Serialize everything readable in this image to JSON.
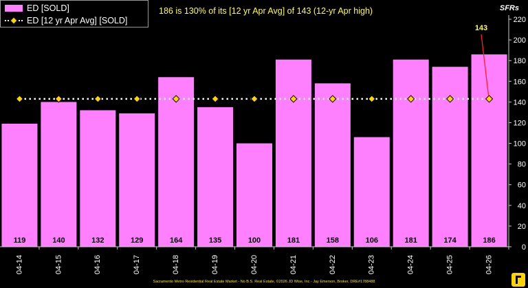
{
  "chart_data": {
    "type": "bar",
    "categories": [
      "04-14",
      "04-15",
      "04-16",
      "04-17",
      "04-18",
      "04-19",
      "04-20",
      "04-21",
      "04-22",
      "04-23",
      "04-24",
      "04-25",
      "04-26"
    ],
    "series": [
      {
        "name": "ED [SOLD]",
        "type": "bar",
        "color": "#ff80ff",
        "values": [
          119,
          140,
          132,
          129,
          164,
          135,
          100,
          181,
          158,
          106,
          181,
          174,
          186
        ]
      },
      {
        "name": "ED [12 yr Apr Avg] [SOLD]",
        "type": "line",
        "color": "#ffffff",
        "marker_color": "#ffd400",
        "values": [
          143,
          143,
          143,
          143,
          143,
          143,
          143,
          143,
          143,
          143,
          143,
          143,
          143
        ]
      }
    ],
    "title": "186 is 130% of its [12 yr Apr Avg] of 143 (12-yr Apr high)",
    "ylabel": "SFRs",
    "ylim": [
      0,
      220
    ],
    "yticks": [
      0,
      20,
      40,
      60,
      80,
      100,
      120,
      140,
      160,
      180,
      200,
      220
    ],
    "grid": false,
    "legend": "top-left",
    "annotation": {
      "text": "143",
      "color": "#ffff33",
      "arrow_color": "#ff2020",
      "target_category": "04-26"
    }
  },
  "footer": "Sacramento Metro Residential Real Estate Market - No B.S. Real Estate, ©2026 JD Wise, Inc - Jay Emerson, Broker, DRE#1788488",
  "colors": {
    "background": "#000000",
    "axis": "#cccccc",
    "label": "#ffffff"
  }
}
